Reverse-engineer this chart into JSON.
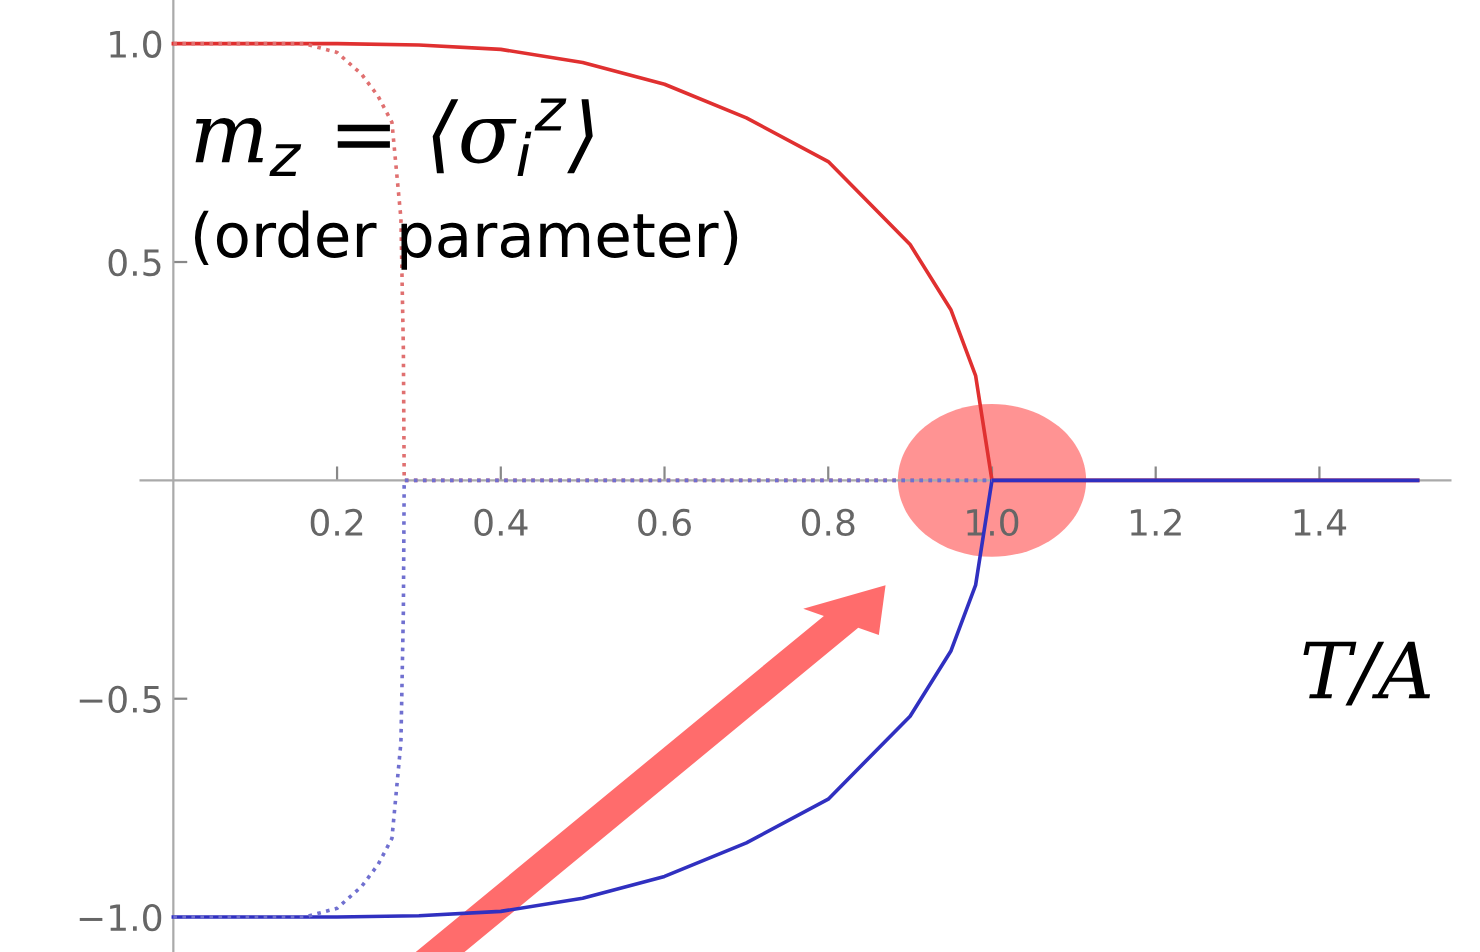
{
  "chart_data": {
    "type": "line",
    "xlabel": "T/A",
    "annotations": [
      "m$_{z}$ = ⟨σ$_{i}$$^{z}$⟩",
      "(order parameter)"
    ],
    "series": [
      {
        "color": "#e03030",
        "line_style": "solid",
        "x": [
          0,
          0.2,
          0.3,
          0.4,
          0.5,
          0.6,
          0.7,
          0.8,
          0.9,
          0.95,
          0.98,
          1.0,
          1.52
        ],
        "values": [
          1.0,
          1.0,
          0.997,
          0.987,
          0.957,
          0.907,
          0.83,
          0.73,
          0.54,
          0.39,
          0.24,
          0,
          0
        ]
      },
      {
        "color": "#3030c0",
        "line_style": "solid",
        "x": [
          0,
          0.2,
          0.3,
          0.4,
          0.5,
          0.6,
          0.7,
          0.8,
          0.9,
          0.95,
          0.98,
          1.0,
          1.52
        ],
        "values": [
          -1.0,
          -1.0,
          -0.997,
          -0.987,
          -0.957,
          -0.907,
          -0.83,
          -0.73,
          -0.54,
          -0.39,
          -0.24,
          0,
          0
        ]
      },
      {
        "color": "#e07070",
        "line_style": "dotted",
        "x": [
          0,
          0.16,
          0.2,
          0.23,
          0.25,
          0.267,
          0.278,
          0.281,
          0.282,
          1.0
        ],
        "values": [
          1.0,
          1.0,
          0.98,
          0.93,
          0.88,
          0.82,
          0.6,
          0.3,
          0,
          0
        ]
      },
      {
        "color": "#7070d0",
        "line_style": "dotted",
        "x": [
          0,
          0.16,
          0.2,
          0.23,
          0.25,
          0.267,
          0.278,
          0.281,
          0.282,
          1.0
        ],
        "values": [
          -1.0,
          -1.0,
          -0.98,
          -0.93,
          -0.88,
          -0.82,
          -0.6,
          -0.3,
          0,
          0
        ]
      }
    ],
    "xlim": [
      -0.04,
      1.56
    ],
    "ylim": [
      -1.08,
      1.1
    ],
    "xticks": [
      {
        "value": 0.2,
        "label": "0.2"
      },
      {
        "value": 0.4,
        "label": "0.4"
      },
      {
        "value": 0.6,
        "label": "0.6"
      },
      {
        "value": 0.8,
        "label": "0.8"
      },
      {
        "value": 1.0,
        "label": "1.0"
      },
      {
        "value": 1.2,
        "label": "1.2"
      },
      {
        "value": 1.4,
        "label": "1.4"
      }
    ],
    "yticks": [
      {
        "value": -1.0,
        "label": "−1.0"
      },
      {
        "value": -0.5,
        "label": "−0.5"
      },
      {
        "value": 0.5,
        "label": "0.5"
      },
      {
        "value": 1.0,
        "label": "1.0"
      }
    ],
    "grid": false,
    "legend": false,
    "marker": "none"
  }
}
